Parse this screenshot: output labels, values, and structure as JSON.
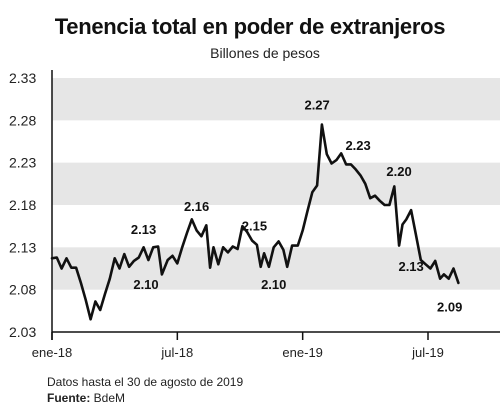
{
  "chart_data": {
    "type": "line",
    "title": "Tenencia total en poder de extranjeros",
    "subtitle": "Billones de pesos",
    "ylim": [
      2.03,
      2.33
    ],
    "yticks": [
      "2.33",
      "2.28",
      "2.23",
      "2.18",
      "2.13",
      "2.08",
      "2.03"
    ],
    "xticks": [
      {
        "label": "ene-18",
        "x": 0
      },
      {
        "label": "jul-18",
        "x": 26
      },
      {
        "label": "ene-19",
        "x": 52
      },
      {
        "label": "jul-19",
        "x": 78
      }
    ],
    "grid": "alternating horizontal bands",
    "series": [
      {
        "values": [
          {
            "x": 0,
            "y": 2.117
          },
          {
            "x": 1,
            "y": 2.118
          },
          {
            "x": 2,
            "y": 2.105
          },
          {
            "x": 3,
            "y": 2.117
          },
          {
            "x": 4,
            "y": 2.106
          },
          {
            "x": 5,
            "y": 2.106
          },
          {
            "x": 6,
            "y": 2.088
          },
          {
            "x": 7,
            "y": 2.068
          },
          {
            "x": 8,
            "y": 2.045
          },
          {
            "x": 9,
            "y": 2.066
          },
          {
            "x": 10,
            "y": 2.056
          },
          {
            "x": 11,
            "y": 2.075
          },
          {
            "x": 12,
            "y": 2.093
          },
          {
            "x": 13,
            "y": 2.117
          },
          {
            "x": 14,
            "y": 2.105
          },
          {
            "x": 15,
            "y": 2.122
          },
          {
            "x": 16,
            "y": 2.107
          },
          {
            "x": 17,
            "y": 2.114
          },
          {
            "x": 18,
            "y": 2.118
          },
          {
            "x": 19,
            "y": 2.13
          },
          {
            "x": 20,
            "y": 2.115
          },
          {
            "x": 21,
            "y": 2.13
          },
          {
            "x": 22,
            "y": 2.131
          },
          {
            "x": 22.8,
            "y": 2.098
          },
          {
            "x": 24,
            "y": 2.115
          },
          {
            "x": 25,
            "y": 2.12
          },
          {
            "x": 26,
            "y": 2.111
          },
          {
            "x": 27,
            "y": 2.13
          },
          {
            "x": 28,
            "y": 2.147
          },
          {
            "x": 29,
            "y": 2.163
          },
          {
            "x": 30,
            "y": 2.15
          },
          {
            "x": 31,
            "y": 2.143
          },
          {
            "x": 32,
            "y": 2.156
          },
          {
            "x": 32.8,
            "y": 2.106
          },
          {
            "x": 33.5,
            "y": 2.13
          },
          {
            "x": 34.5,
            "y": 2.11
          },
          {
            "x": 35.5,
            "y": 2.13
          },
          {
            "x": 36.5,
            "y": 2.124
          },
          {
            "x": 37.5,
            "y": 2.131
          },
          {
            "x": 38.5,
            "y": 2.128
          },
          {
            "x": 39.5,
            "y": 2.155
          },
          {
            "x": 40.5,
            "y": 2.148
          },
          {
            "x": 41.5,
            "y": 2.138
          },
          {
            "x": 42.5,
            "y": 2.133
          },
          {
            "x": 43.3,
            "y": 2.107
          },
          {
            "x": 44,
            "y": 2.123
          },
          {
            "x": 45,
            "y": 2.107
          },
          {
            "x": 46,
            "y": 2.13
          },
          {
            "x": 47,
            "y": 2.137
          },
          {
            "x": 48,
            "y": 2.127
          },
          {
            "x": 48.8,
            "y": 2.107
          },
          {
            "x": 49.8,
            "y": 2.132
          },
          {
            "x": 51,
            "y": 2.132
          },
          {
            "x": 52,
            "y": 2.15
          },
          {
            "x": 53,
            "y": 2.173
          },
          {
            "x": 54,
            "y": 2.195
          },
          {
            "x": 55,
            "y": 2.203
          },
          {
            "x": 56,
            "y": 2.275
          },
          {
            "x": 57,
            "y": 2.24
          },
          {
            "x": 58,
            "y": 2.229
          },
          {
            "x": 59,
            "y": 2.233
          },
          {
            "x": 60,
            "y": 2.241
          },
          {
            "x": 61,
            "y": 2.228
          },
          {
            "x": 62,
            "y": 2.228
          },
          {
            "x": 63,
            "y": 2.222
          },
          {
            "x": 64,
            "y": 2.215
          },
          {
            "x": 65,
            "y": 2.205
          },
          {
            "x": 66,
            "y": 2.188
          },
          {
            "x": 67,
            "y": 2.191
          },
          {
            "x": 68,
            "y": 2.185
          },
          {
            "x": 69,
            "y": 2.18
          },
          {
            "x": 70,
            "y": 2.18
          },
          {
            "x": 71,
            "y": 2.202
          },
          {
            "x": 72,
            "y": 2.132
          },
          {
            "x": 72.7,
            "y": 2.157
          },
          {
            "x": 73.5,
            "y": 2.163
          },
          {
            "x": 74.5,
            "y": 2.174
          },
          {
            "x": 75.5,
            "y": 2.145
          },
          {
            "x": 76.5,
            "y": 2.115
          },
          {
            "x": 77.5,
            "y": 2.11
          },
          {
            "x": 78.5,
            "y": 2.105
          },
          {
            "x": 79.5,
            "y": 2.114
          },
          {
            "x": 80.5,
            "y": 2.093
          },
          {
            "x": 81.3,
            "y": 2.098
          },
          {
            "x": 82.3,
            "y": 2.093
          },
          {
            "x": 83.3,
            "y": 2.105
          },
          {
            "x": 84.3,
            "y": 2.088
          }
        ]
      }
    ],
    "annotations": [
      {
        "text": "2.13",
        "x": 19.0,
        "y": 2.146
      },
      {
        "text": "2.10",
        "x": 19.5,
        "y": 2.081
      },
      {
        "text": "2.16",
        "x": 30.0,
        "y": 2.173
      },
      {
        "text": "2.15",
        "x": 42.0,
        "y": 2.15
      },
      {
        "text": "2.10",
        "x": 46.0,
        "y": 2.081
      },
      {
        "text": "2.27",
        "x": 55.0,
        "y": 2.293
      },
      {
        "text": "2.23",
        "x": 63.5,
        "y": 2.245
      },
      {
        "text": "2.20",
        "x": 72.0,
        "y": 2.214
      },
      {
        "text": "2.13",
        "x": 74.5,
        "y": 2.102
      },
      {
        "text": "2.09",
        "x": 82.5,
        "y": 2.054
      }
    ]
  },
  "footer": {
    "note": "Datos hasta el 30 de agosto de 2019",
    "source_label": "Fuente:",
    "source_value": " BdeM"
  }
}
